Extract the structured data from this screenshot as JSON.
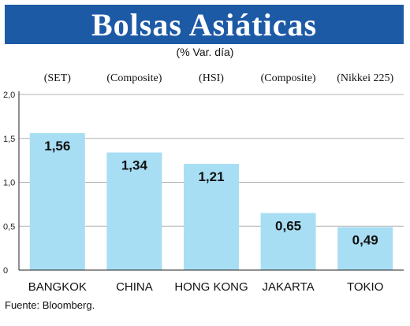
{
  "chart_data": {
    "type": "bar",
    "title": "Bolsas Asiáticas",
    "subtitle": "(% Var. día)",
    "categories": [
      "BANGKOK",
      "CHINA",
      "HONG KONG",
      "JAKARTA",
      "TOKIO"
    ],
    "index_names": [
      "(SET)",
      "(Composite)",
      "(HSI)",
      "(Composite)",
      "(Nikkei 225)"
    ],
    "values": [
      1.56,
      1.34,
      1.21,
      0.65,
      0.49
    ],
    "value_labels": [
      "1,56",
      "1,34",
      "1,21",
      "0,65",
      "0,49"
    ],
    "yticks": [
      0,
      0.5,
      1.0,
      1.5,
      2.0
    ],
    "ytick_labels": [
      "0",
      "0,5",
      "1,0",
      "1,5",
      "2,0"
    ],
    "ylim": [
      0,
      2.0
    ],
    "grid": true,
    "bar_color": "#a8def4",
    "grid_color": "#b0b0b0"
  },
  "source": "Fuente: Bloomberg."
}
